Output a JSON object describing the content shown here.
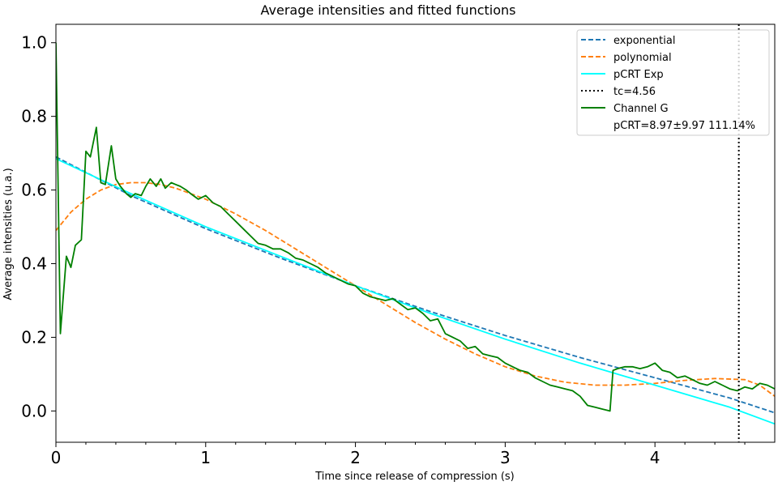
{
  "chart_data": {
    "type": "line",
    "title": "Average intensities and fitted functions",
    "xlabel": "Time since release of compression (s)",
    "ylabel": "Average intensities (u.a.)",
    "xlim": [
      0,
      4.8
    ],
    "ylim": [
      -0.085,
      1.05
    ],
    "xticks": [
      0,
      1,
      2,
      3,
      4
    ],
    "xtick_labels": [
      "0",
      "1",
      "2",
      "3",
      "4"
    ],
    "yticks": [
      0.0,
      0.2,
      0.4,
      0.6,
      0.8,
      1.0
    ],
    "ytick_labels": [
      "0.0",
      "0.2",
      "0.4",
      "0.6",
      "0.8",
      "1.0"
    ],
    "grid": false,
    "legend_position": "top-right",
    "series": [
      {
        "name": "exponential",
        "color": "#1f77b4",
        "style": "dashed",
        "x": [
          0,
          0.5,
          1,
          1.5,
          2,
          2.5,
          3,
          3.5,
          4,
          4.5,
          4.8
        ],
        "y": [
          0.69,
          0.585,
          0.495,
          0.415,
          0.34,
          0.27,
          0.205,
          0.145,
          0.09,
          0.035,
          -0.005
        ]
      },
      {
        "name": "polynomial",
        "color": "#ff7f0e",
        "style": "dashed",
        "x": [
          0,
          0.1,
          0.2,
          0.3,
          0.4,
          0.5,
          0.6,
          0.7,
          0.8,
          1.0,
          1.2,
          1.4,
          1.6,
          1.8,
          2.0,
          2.2,
          2.4,
          2.6,
          2.8,
          3.0,
          3.2,
          3.4,
          3.6,
          3.8,
          4.0,
          4.2,
          4.4,
          4.6,
          4.7,
          4.8
        ],
        "y": [
          0.49,
          0.54,
          0.575,
          0.6,
          0.615,
          0.62,
          0.62,
          0.615,
          0.605,
          0.575,
          0.535,
          0.49,
          0.44,
          0.39,
          0.34,
          0.29,
          0.24,
          0.195,
          0.155,
          0.12,
          0.095,
          0.078,
          0.07,
          0.07,
          0.075,
          0.083,
          0.088,
          0.085,
          0.07,
          0.04
        ]
      },
      {
        "name": "pCRT Exp",
        "color": "#00ffff",
        "style": "solid",
        "x": [
          0,
          0.5,
          1,
          1.5,
          2,
          2.5,
          3,
          3.5,
          4,
          4.5,
          4.8
        ],
        "y": [
          0.685,
          0.59,
          0.5,
          0.42,
          0.34,
          0.265,
          0.195,
          0.13,
          0.07,
          0.01,
          -0.035
        ]
      },
      {
        "name": "Channel G",
        "color": "#008000",
        "style": "solid",
        "x": [
          0,
          0.03,
          0.07,
          0.1,
          0.13,
          0.17,
          0.2,
          0.23,
          0.27,
          0.3,
          0.33,
          0.37,
          0.4,
          0.43,
          0.47,
          0.5,
          0.53,
          0.57,
          0.6,
          0.63,
          0.67,
          0.7,
          0.73,
          0.77,
          0.8,
          0.83,
          0.87,
          0.9,
          0.95,
          1.0,
          1.05,
          1.1,
          1.15,
          1.2,
          1.25,
          1.3,
          1.35,
          1.4,
          1.45,
          1.5,
          1.55,
          1.6,
          1.65,
          1.7,
          1.75,
          1.8,
          1.85,
          1.9,
          1.95,
          2.0,
          2.05,
          2.1,
          2.15,
          2.2,
          2.25,
          2.3,
          2.35,
          2.4,
          2.45,
          2.5,
          2.55,
          2.6,
          2.65,
          2.7,
          2.75,
          2.8,
          2.85,
          2.9,
          2.95,
          3.0,
          3.05,
          3.1,
          3.15,
          3.2,
          3.25,
          3.3,
          3.35,
          3.4,
          3.45,
          3.5,
          3.55,
          3.6,
          3.65,
          3.7,
          3.72,
          3.75,
          3.8,
          3.85,
          3.9,
          3.95,
          4.0,
          4.05,
          4.1,
          4.15,
          4.2,
          4.25,
          4.3,
          4.35,
          4.4,
          4.45,
          4.5,
          4.55,
          4.6,
          4.65,
          4.7,
          4.75,
          4.8
        ],
        "y": [
          1.0,
          0.21,
          0.42,
          0.39,
          0.45,
          0.465,
          0.705,
          0.69,
          0.77,
          0.62,
          0.615,
          0.72,
          0.63,
          0.61,
          0.59,
          0.58,
          0.59,
          0.585,
          0.61,
          0.63,
          0.61,
          0.63,
          0.605,
          0.62,
          0.615,
          0.61,
          0.6,
          0.59,
          0.575,
          0.585,
          0.565,
          0.555,
          0.535,
          0.515,
          0.495,
          0.475,
          0.455,
          0.45,
          0.44,
          0.44,
          0.43,
          0.415,
          0.41,
          0.4,
          0.39,
          0.375,
          0.365,
          0.355,
          0.345,
          0.34,
          0.32,
          0.31,
          0.305,
          0.3,
          0.305,
          0.29,
          0.275,
          0.28,
          0.265,
          0.245,
          0.25,
          0.21,
          0.2,
          0.19,
          0.17,
          0.175,
          0.155,
          0.15,
          0.145,
          0.13,
          0.12,
          0.11,
          0.105,
          0.09,
          0.08,
          0.07,
          0.065,
          0.06,
          0.055,
          0.04,
          0.015,
          0.01,
          0.005,
          0.0,
          0.11,
          0.115,
          0.12,
          0.12,
          0.115,
          0.12,
          0.13,
          0.11,
          0.105,
          0.09,
          0.095,
          0.085,
          0.075,
          0.07,
          0.08,
          0.07,
          0.06,
          0.055,
          0.065,
          0.06,
          0.075,
          0.07,
          0.06
        ]
      }
    ],
    "vlines": [
      {
        "name": "tc=4.56",
        "x": 4.56,
        "color": "#000000",
        "style": "dotted"
      }
    ],
    "legend_extra": "pCRT=8.97±9.97 111.14%"
  }
}
